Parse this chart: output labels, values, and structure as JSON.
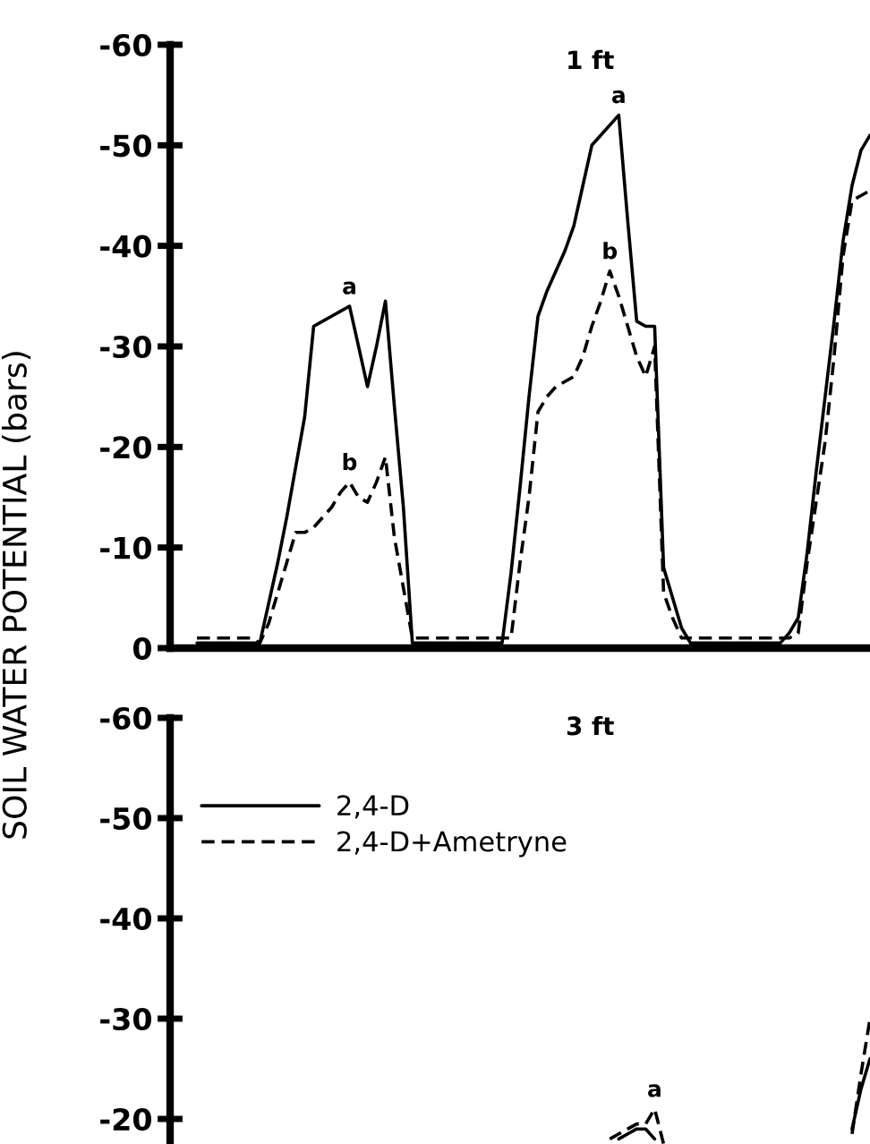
{
  "chart_data": [
    {
      "type": "line",
      "title": "1 ft",
      "ylabel": "SOIL WATER POTENTIAL (bars)",
      "tick_labels": "y",
      "categories": [
        null,
        null,
        null,
        null,
        null,
        null,
        null,
        null,
        null,
        null,
        null,
        null,
        null,
        null,
        null,
        null,
        null,
        null,
        null,
        null,
        null,
        null,
        null,
        null,
        null,
        null,
        null,
        null,
        null,
        null,
        null,
        null,
        null,
        null,
        null,
        null,
        null,
        null,
        null,
        null,
        null,
        null,
        null,
        null,
        null,
        null,
        null,
        null,
        null,
        null,
        null,
        null,
        null,
        null,
        null,
        null,
        null,
        null,
        null,
        null,
        null,
        null,
        null,
        null,
        null,
        null,
        null,
        null,
        null,
        null,
        null,
        null,
        null,
        null,
        null,
        null
      ],
      "ylim": [
        0,
        -60
      ],
      "yticks": [
        0,
        -10,
        -20,
        -30,
        -40,
        -50,
        -60
      ],
      "series": [
        {
          "color": "#000000",
          "line_style": "solid",
          "values": [
            -0.5,
            -0.5,
            -0.5,
            -0.5,
            -0.5,
            -0.5,
            -0.5,
            -0.5,
            -4.5,
            -8.5,
            -13,
            -18,
            -23,
            -32,
            -32.5,
            -33,
            -33.5,
            -34,
            -30,
            -26,
            -30,
            -34.5,
            -24,
            -14,
            -0.5,
            -0.5,
            -0.5,
            -0.5,
            -0.5,
            -0.5,
            -0.5,
            -0.5,
            -0.5,
            -0.5,
            -0.5,
            -7.5,
            -16,
            -25,
            -33,
            -35.5,
            -37.5,
            -39.5,
            -42,
            -46,
            -50,
            -51,
            -52,
            -53,
            -42.5,
            -32.5,
            -32,
            -32,
            -8,
            -5,
            -2,
            -0.5,
            -0.5,
            -0.5,
            -0.5,
            -0.5,
            -0.5,
            -0.5,
            -0.5,
            -0.5,
            -0.5,
            -0.5,
            -1.5,
            -3,
            -9.5,
            -17.5,
            -25,
            -32.5,
            -40.5,
            -46,
            -49.5,
            -51
          ],
          "value_labels": [
            null,
            null,
            null,
            null,
            null,
            null,
            null,
            null,
            null,
            null,
            null,
            null,
            null,
            null,
            null,
            null,
            null,
            "a",
            null,
            null,
            null,
            null,
            null,
            null,
            null,
            null,
            null,
            null,
            null,
            null,
            null,
            null,
            null,
            null,
            null,
            null,
            null,
            null,
            null,
            null,
            null,
            null,
            null,
            null,
            null,
            null,
            null,
            "a",
            null,
            null,
            null,
            null,
            null,
            null,
            null,
            null,
            null,
            null,
            null,
            null,
            null,
            null,
            null,
            null,
            null,
            null,
            null,
            null,
            null,
            null,
            null,
            null,
            null,
            null,
            null,
            null
          ]
        },
        {
          "color": "#000000",
          "line_style": "dashed",
          "values": [
            -1,
            -1,
            -1,
            -1,
            -1,
            -1,
            -1,
            -0.5,
            -2.5,
            -5.5,
            -8.5,
            -11.5,
            -11.5,
            -12,
            -13,
            -14,
            -15.5,
            -16.5,
            -15,
            -14.5,
            -16.5,
            -19,
            -11,
            -6,
            -1,
            -1,
            -1,
            -1,
            -1,
            -1,
            -1,
            -1,
            -1,
            -1,
            -1,
            -1,
            -8.5,
            -15,
            -23.5,
            -25,
            -26,
            -26.5,
            -27,
            -29,
            -32,
            -34.5,
            -37.5,
            -35,
            -32,
            -29,
            -27,
            -30,
            -5.5,
            -3,
            -1,
            -1,
            -1,
            -1,
            -1,
            -1,
            -1,
            -1,
            -1,
            -1,
            -1,
            -1,
            -1,
            -1.5,
            -8.5,
            -14.5,
            -20.5,
            -29,
            -39,
            -44.5,
            -45,
            -45.5
          ],
          "value_labels": [
            null,
            null,
            null,
            null,
            null,
            null,
            null,
            null,
            null,
            null,
            null,
            null,
            null,
            null,
            null,
            null,
            null,
            "b",
            null,
            null,
            null,
            null,
            null,
            null,
            null,
            null,
            null,
            null,
            null,
            null,
            null,
            null,
            null,
            null,
            null,
            null,
            null,
            null,
            null,
            null,
            null,
            null,
            null,
            null,
            null,
            null,
            "b",
            null,
            null,
            null,
            null,
            null,
            null,
            null,
            null,
            null,
            null,
            null,
            null,
            null,
            null,
            null,
            null,
            null,
            null,
            null,
            null,
            null,
            null,
            null,
            null,
            null,
            null,
            null,
            null,
            null
          ]
        }
      ]
    },
    {
      "type": "line",
      "title": "3 ft",
      "tick_labels": "y",
      "legend": "top left",
      "categories": [
        null,
        null,
        null,
        null,
        null,
        null,
        null,
        null,
        null,
        null,
        null,
        null,
        null,
        null,
        null,
        null,
        null,
        null,
        null,
        null,
        null,
        null,
        null,
        null,
        null,
        null,
        null,
        null,
        null,
        null,
        null,
        null,
        null,
        null,
        null,
        null,
        null,
        null,
        null,
        null,
        null,
        null,
        null,
        null,
        null,
        null,
        null,
        null,
        null,
        null,
        null,
        null,
        null,
        null,
        null,
        null,
        null,
        null,
        null,
        null,
        null,
        null,
        null,
        null,
        null,
        null,
        null,
        null,
        null,
        null,
        null,
        null,
        null,
        null,
        null,
        null
      ],
      "ylim": [
        -17.5,
        -60
      ],
      "yticks": [
        -20,
        -30,
        -40,
        -50,
        -60
      ],
      "series": [
        {
          "name": "2,4-D",
          "color": "#000000",
          "line_style": "solid",
          "values": [
            null,
            null,
            null,
            null,
            null,
            null,
            null,
            null,
            null,
            null,
            null,
            null,
            null,
            null,
            null,
            null,
            null,
            null,
            null,
            null,
            null,
            null,
            null,
            null,
            null,
            null,
            null,
            null,
            null,
            null,
            null,
            null,
            null,
            null,
            null,
            null,
            null,
            null,
            null,
            null,
            null,
            null,
            null,
            null,
            null,
            null,
            null,
            -18,
            -18.5,
            -19,
            -19,
            -18,
            null,
            null,
            null,
            null,
            null,
            null,
            null,
            null,
            null,
            null,
            null,
            null,
            null,
            null,
            null,
            null,
            null,
            null,
            null,
            null,
            null,
            -19,
            -23,
            -26
          ]
        },
        {
          "name": "2,4-D+Ametryne",
          "color": "#000000",
          "line_style": "dashed",
          "values": [
            null,
            null,
            null,
            null,
            null,
            null,
            null,
            null,
            null,
            null,
            null,
            null,
            null,
            null,
            null,
            null,
            null,
            null,
            null,
            null,
            null,
            null,
            null,
            null,
            null,
            null,
            null,
            null,
            null,
            null,
            null,
            null,
            null,
            null,
            null,
            null,
            null,
            null,
            null,
            null,
            null,
            null,
            null,
            null,
            null,
            null,
            -18,
            -18.5,
            -19,
            -19.5,
            -19.5,
            -21,
            -17.5,
            null,
            null,
            null,
            null,
            null,
            null,
            null,
            null,
            null,
            null,
            null,
            null,
            null,
            null,
            null,
            null,
            null,
            null,
            null,
            null,
            -18.5,
            -24.5,
            -30
          ],
          "value_labels": [
            null,
            null,
            null,
            null,
            null,
            null,
            null,
            null,
            null,
            null,
            null,
            null,
            null,
            null,
            null,
            null,
            null,
            null,
            null,
            null,
            null,
            null,
            null,
            null,
            null,
            null,
            null,
            null,
            null,
            null,
            null,
            null,
            null,
            null,
            null,
            null,
            null,
            null,
            null,
            null,
            null,
            null,
            null,
            null,
            null,
            null,
            null,
            null,
            null,
            null,
            null,
            "a",
            null,
            null,
            null,
            null,
            null,
            null,
            null,
            null,
            null,
            null,
            null,
            null,
            null,
            null,
            null,
            null,
            null,
            null,
            null,
            null,
            null,
            null,
            null,
            null
          ]
        }
      ]
    }
  ]
}
